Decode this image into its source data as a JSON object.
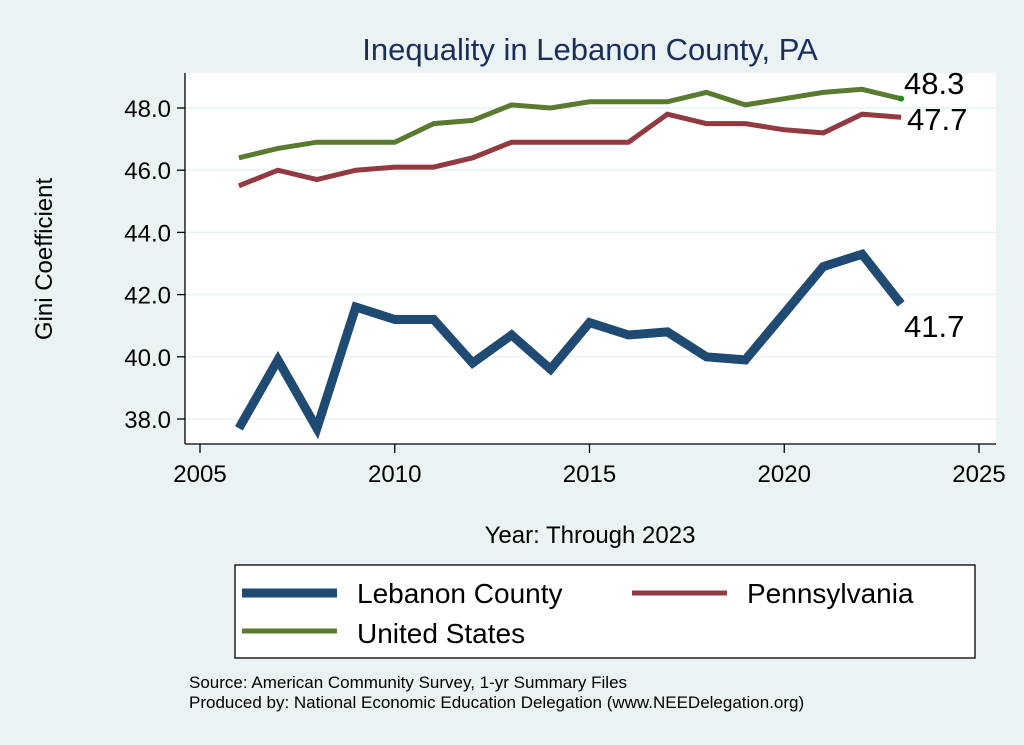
{
  "chart_data": {
    "type": "line",
    "title": "Inequality in Lebanon County, PA",
    "xlabel": "Year: Through 2023",
    "ylabel": "Gini Coefficient",
    "xlim": [
      2005,
      2025
    ],
    "ylim": [
      37.3,
      49.1
    ],
    "xticks": [
      2005,
      2010,
      2015,
      2020,
      2025
    ],
    "xtick_labels": [
      "2005",
      "2010",
      "2015",
      "2020",
      "2025"
    ],
    "yticks": [
      38,
      40,
      42,
      44,
      46,
      48
    ],
    "ytick_labels": [
      "38.0",
      "40.0",
      "42.0",
      "44.0",
      "46.0",
      "48.0"
    ],
    "grid": true,
    "x": [
      2006,
      2007,
      2008,
      2009,
      2010,
      2011,
      2012,
      2013,
      2014,
      2015,
      2016,
      2017,
      2018,
      2019,
      2020,
      2021,
      2022,
      2023
    ],
    "series": [
      {
        "name": "Lebanon County",
        "color": "#1f4a72",
        "values": [
          37.7,
          39.9,
          37.7,
          41.6,
          41.2,
          41.2,
          39.8,
          40.7,
          39.6,
          41.1,
          40.7,
          40.8,
          40.0,
          39.9,
          41.4,
          42.9,
          43.3,
          41.7
        ],
        "end_label": "41.7"
      },
      {
        "name": "Pennsylvania",
        "color": "#913a40",
        "values": [
          45.5,
          46.0,
          45.7,
          46.0,
          46.1,
          46.1,
          46.4,
          46.9,
          46.9,
          46.9,
          46.9,
          47.8,
          47.5,
          47.5,
          47.3,
          47.2,
          47.8,
          47.7
        ],
        "end_label": "47.7"
      },
      {
        "name": "United States",
        "color": "#5a7a2f",
        "values": [
          46.4,
          46.7,
          46.9,
          46.9,
          46.9,
          47.5,
          47.6,
          48.1,
          48.0,
          48.2,
          48.2,
          48.2,
          48.5,
          48.1,
          48.3,
          48.5,
          48.6,
          48.3
        ],
        "end_label": "48.3"
      }
    ],
    "legend": {
      "placement": "bottom",
      "entries": [
        "Lebanon County",
        "Pennsylvania",
        "United States"
      ]
    },
    "notes": [
      "Source: American Community Survey, 1-yr Summary Files",
      "Produced by: National Economic Education Delegation (www.NEEDelegation.org)"
    ]
  },
  "colors": {
    "background": "#eaf2f3",
    "plot_background": "#ffffff",
    "gridline": "#eaf2f3",
    "title": "#1a2e5a"
  }
}
